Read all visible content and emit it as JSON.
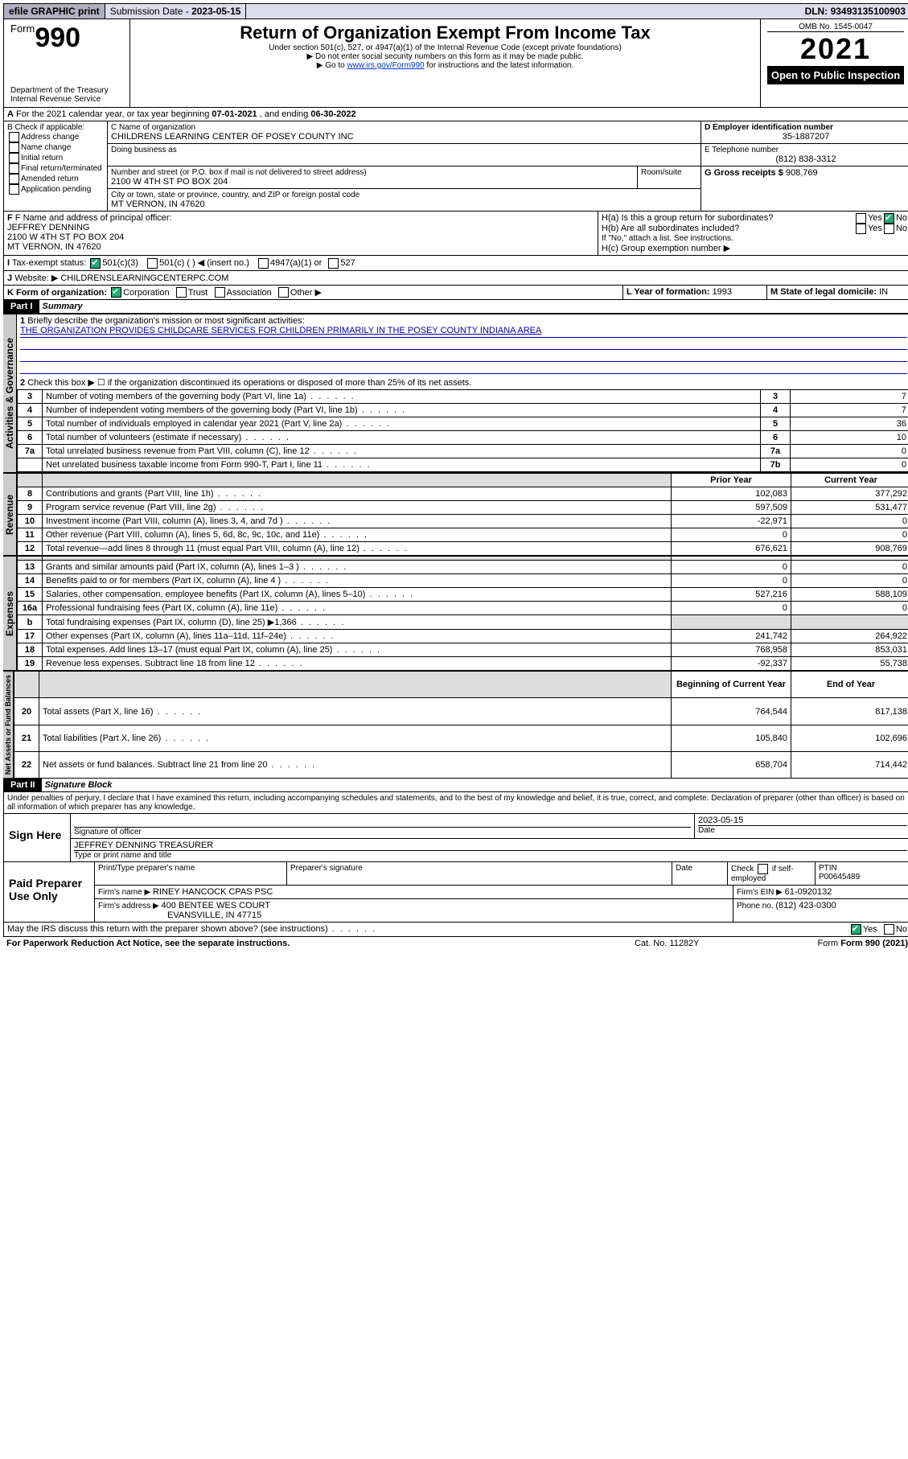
{
  "topbar": {
    "efile": "efile GRAPHIC print",
    "subdate_label": "Submission Date - ",
    "subdate": "2023-05-15",
    "dln_label": "DLN: ",
    "dln": "93493135100903"
  },
  "header": {
    "form_word": "Form",
    "form_no": "990",
    "dept": "Department of the Treasury",
    "irs": "Internal Revenue Service",
    "title": "Return of Organization Exempt From Income Tax",
    "sub1": "Under section 501(c), 527, or 4947(a)(1) of the Internal Revenue Code (except private foundations)",
    "sub2": "▶ Do not enter social security numbers on this form as it may be made public.",
    "sub3_pre": "▶ Go to ",
    "sub3_link": "www.irs.gov/Form990",
    "sub3_post": " for instructions and the latest information.",
    "omb": "OMB No. 1545-0047",
    "year": "2021",
    "openpub": "Open to Public Inspection"
  },
  "A": {
    "text": "For the 2021 calendar year, or tax year beginning ",
    "begin": "07-01-2021",
    "mid": " , and ending ",
    "end": "06-30-2022"
  },
  "B": {
    "label": "B Check if applicable:",
    "opts": [
      "Address change",
      "Name change",
      "Initial return",
      "Final return/terminated",
      "Amended return",
      "Application pending"
    ]
  },
  "C": {
    "name_lbl": "C Name of organization",
    "name": "CHILDRENS LEARNING CENTER OF POSEY COUNTY INC",
    "dba_lbl": "Doing business as",
    "street_lbl": "Number and street (or P.O. box if mail is not delivered to street address)",
    "room_lbl": "Room/suite",
    "street": "2100 W 4TH ST PO BOX 204",
    "city_lbl": "City or town, state or province, country, and ZIP or foreign postal code",
    "city": "MT VERNON, IN  47620"
  },
  "D": {
    "lbl": "D Employer identification number",
    "val": "35-1887207"
  },
  "E": {
    "lbl": "E Telephone number",
    "val": "(812) 838-3312"
  },
  "G": {
    "lbl": "G Gross receipts $ ",
    "val": "908,769"
  },
  "F": {
    "lbl": "F Name and address of principal officer:",
    "name": "JEFFREY DENNING",
    "addr1": "2100 W 4TH ST PO BOX 204",
    "addr2": "MT VERNON, IN  47620"
  },
  "H": {
    "a": "H(a)  Is this a group return for subordinates?",
    "b": "H(b)  Are all subordinates included?",
    "b_note": "If \"No,\" attach a list. See instructions.",
    "c": "H(c)  Group exemption number ▶",
    "yes": "Yes",
    "no": "No"
  },
  "I": {
    "lbl": "Tax-exempt status:",
    "o1": "501(c)(3)",
    "o2": "501(c) (  ) ◀ (insert no.)",
    "o3": "4947(a)(1) or",
    "o4": "527"
  },
  "J": {
    "lbl": "Website: ▶",
    "val": "CHILDRENSLEARNINGCENTERPC.COM"
  },
  "K": {
    "lbl": "K Form of organization:",
    "o1": "Corporation",
    "o2": "Trust",
    "o3": "Association",
    "o4": "Other ▶"
  },
  "L": {
    "lbl": "L Year of formation: ",
    "val": "1993"
  },
  "M": {
    "lbl": "M State of legal domicile: ",
    "val": "IN"
  },
  "partI": {
    "tag": "Part I",
    "title": "Summary"
  },
  "summary": {
    "q1": "Briefly describe the organization's mission or most significant activities:",
    "mission": "THE ORGANIZATION PROVIDES CHILDCARE SERVICES FOR CHILDREN PRIMARILY IN THE POSEY COUNTY INDIANA AREA",
    "q2": "Check this box ▶ ☐  if the organization discontinued its operations or disposed of more than 25% of its net assets.",
    "rows_ag": [
      {
        "n": "3",
        "t": "Number of voting members of the governing body (Part VI, line 1a)",
        "c": "3",
        "v": "7"
      },
      {
        "n": "4",
        "t": "Number of independent voting members of the governing body (Part VI, line 1b)",
        "c": "4",
        "v": "7"
      },
      {
        "n": "5",
        "t": "Total number of individuals employed in calendar year 2021 (Part V, line 2a)",
        "c": "5",
        "v": "36"
      },
      {
        "n": "6",
        "t": "Total number of volunteers (estimate if necessary)",
        "c": "6",
        "v": "10"
      },
      {
        "n": "7a",
        "t": "Total unrelated business revenue from Part VIII, column (C), line 12",
        "c": "7a",
        "v": "0"
      },
      {
        "n": "",
        "t": "Net unrelated business taxable income from Form 990-T, Part I, line 11",
        "c": "7b",
        "v": "0"
      }
    ],
    "col_prior": "Prior Year",
    "col_current": "Current Year",
    "col_begin": "Beginning of Current Year",
    "col_end": "End of Year",
    "rev": [
      {
        "n": "8",
        "t": "Contributions and grants (Part VIII, line 1h)",
        "p": "102,083",
        "c": "377,292"
      },
      {
        "n": "9",
        "t": "Program service revenue (Part VIII, line 2g)",
        "p": "597,509",
        "c": "531,477"
      },
      {
        "n": "10",
        "t": "Investment income (Part VIII, column (A), lines 3, 4, and 7d )",
        "p": "-22,971",
        "c": "0"
      },
      {
        "n": "11",
        "t": "Other revenue (Part VIII, column (A), lines 5, 6d, 8c, 9c, 10c, and 11e)",
        "p": "0",
        "c": "0"
      },
      {
        "n": "12",
        "t": "Total revenue—add lines 8 through 11 (must equal Part VIII, column (A), line 12)",
        "p": "676,621",
        "c": "908,769"
      }
    ],
    "exp": [
      {
        "n": "13",
        "t": "Grants and similar amounts paid (Part IX, column (A), lines 1–3 )",
        "p": "0",
        "c": "0"
      },
      {
        "n": "14",
        "t": "Benefits paid to or for members (Part IX, column (A), line 4 )",
        "p": "0",
        "c": "0"
      },
      {
        "n": "15",
        "t": "Salaries, other compensation, employee benefits (Part IX, column (A), lines 5–10)",
        "p": "527,216",
        "c": "588,109"
      },
      {
        "n": "16a",
        "t": "Professional fundraising fees (Part IX, column (A), line 11e)",
        "p": "0",
        "c": "0"
      },
      {
        "n": "b",
        "t": "Total fundraising expenses (Part IX, column (D), line 25) ▶1,366",
        "p": "",
        "c": "",
        "shade": true
      },
      {
        "n": "17",
        "t": "Other expenses (Part IX, column (A), lines 11a–11d, 11f–24e)",
        "p": "241,742",
        "c": "264,922"
      },
      {
        "n": "18",
        "t": "Total expenses. Add lines 13–17 (must equal Part IX, column (A), line 25)",
        "p": "768,958",
        "c": "853,031"
      },
      {
        "n": "19",
        "t": "Revenue less expenses. Subtract line 18 from line 12",
        "p": "-92,337",
        "c": "55,738"
      }
    ],
    "net": [
      {
        "n": "20",
        "t": "Total assets (Part X, line 16)",
        "p": "764,544",
        "c": "817,138"
      },
      {
        "n": "21",
        "t": "Total liabilities (Part X, line 26)",
        "p": "105,840",
        "c": "102,696"
      },
      {
        "n": "22",
        "t": "Net assets or fund balances. Subtract line 21 from line 20",
        "p": "658,704",
        "c": "714,442"
      }
    ]
  },
  "vtabs": {
    "ag": "Activities & Governance",
    "rev": "Revenue",
    "exp": "Expenses",
    "net": "Net Assets or Fund Balances"
  },
  "partII": {
    "tag": "Part II",
    "title": "Signature Block"
  },
  "penalties": "Under penalties of perjury, I declare that I have examined this return, including accompanying schedules and statements, and to the best of my knowledge and belief, it is true, correct, and complete. Declaration of preparer (other than officer) is based on all information of which preparer has any knowledge.",
  "sign": {
    "here": "Sign Here",
    "sig_lbl": "Signature of officer",
    "date_lbl": "Date",
    "date": "2023-05-15",
    "name": "JEFFREY DENNING  TREASURER",
    "name_lbl": "Type or print name and title"
  },
  "paid": {
    "title": "Paid Preparer Use Only",
    "h1": "Print/Type preparer's name",
    "h2": "Preparer's signature",
    "h3": "Date",
    "h4_pre": "Check",
    "h4_post": "if self-employed",
    "h5": "PTIN",
    "ptin": "P00645489",
    "firm_lbl": "Firm's name    ▶ ",
    "firm": "RINEY HANCOCK CPAS PSC",
    "ein_lbl": "Firm's EIN ▶ ",
    "ein": "61-0920132",
    "addr_lbl": "Firm's address ▶ ",
    "addr1": "400 BENTEE WES COURT",
    "addr2": "EVANSVILLE, IN  47715",
    "phone_lbl": "Phone no. ",
    "phone": "(812) 423-0300"
  },
  "footer": {
    "discuss": "May the IRS discuss this return with the preparer shown above? (see instructions)",
    "yes": "Yes",
    "no": "No",
    "paperwork": "For Paperwork Reduction Act Notice, see the separate instructions.",
    "cat": "Cat. No. 11282Y",
    "form": "Form 990 (2021)"
  }
}
